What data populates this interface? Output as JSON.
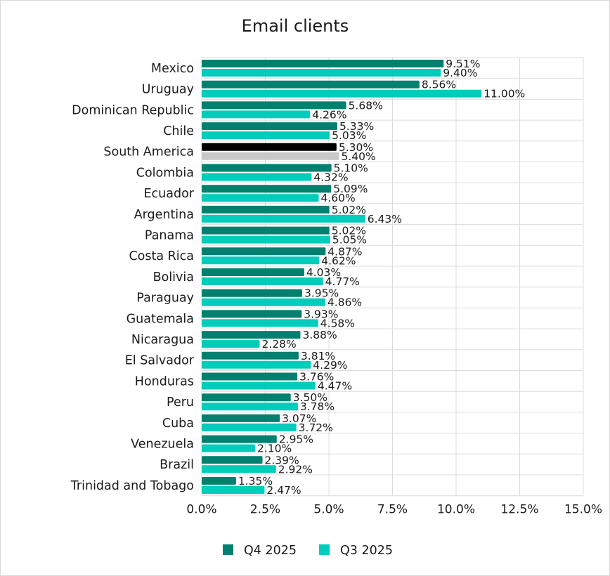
{
  "chart_data": {
    "type": "bar",
    "orientation": "horizontal",
    "title": "Email clients",
    "xlabel": "",
    "ylabel": "",
    "xlim": [
      0,
      15
    ],
    "x_ticks": [
      "0.0%",
      "2.5%",
      "5.0%",
      "7.5%",
      "10.0%",
      "12.5%",
      "15.0%"
    ],
    "grid": true,
    "legend_position": "bottom",
    "categories": [
      "Mexico",
      "Uruguay",
      "Dominican Republic",
      "Chile",
      "South America",
      "Colombia",
      "Ecuador",
      "Argentina",
      "Panama",
      "Costa Rica",
      "Bolivia",
      "Paraguay",
      "Guatemala",
      "Nicaragua",
      "El Salvador",
      "Honduras",
      "Peru",
      "Cuba",
      "Venezuela",
      "Brazil",
      "Trinidad and Tobago"
    ],
    "series": [
      {
        "name": "Q4 2025",
        "color": "#00806e",
        "values": [
          9.51,
          8.56,
          5.68,
          5.33,
          5.3,
          5.1,
          5.09,
          5.02,
          5.02,
          4.87,
          4.03,
          3.95,
          3.93,
          3.88,
          3.81,
          3.76,
          3.5,
          3.07,
          2.95,
          2.39,
          1.35
        ],
        "labels": [
          "9.51%",
          "8.56%",
          "5.68%",
          "5.33%",
          "5.30%",
          "5.10%",
          "5.09%",
          "5.02%",
          "5.02%",
          "4.87%",
          "4.03%",
          "3.95%",
          "3.93%",
          "3.88%",
          "3.81%",
          "3.76%",
          "3.50%",
          "3.07%",
          "2.95%",
          "2.39%",
          "1.35%"
        ]
      },
      {
        "name": "Q3 2025",
        "color": "#00ccbb",
        "values": [
          9.4,
          11.0,
          4.26,
          5.03,
          5.4,
          4.32,
          4.6,
          6.43,
          5.05,
          4.62,
          4.77,
          4.86,
          4.58,
          2.28,
          4.29,
          4.47,
          3.78,
          3.72,
          2.1,
          2.92,
          2.47
        ],
        "labels": [
          "9.40%",
          "11.00%",
          "4.26%",
          "5.03%",
          "5.40%",
          "4.32%",
          "4.60%",
          "6.43%",
          "5.05%",
          "4.62%",
          "4.77%",
          "4.86%",
          "4.58%",
          "2.28%",
          "4.29%",
          "4.47%",
          "3.78%",
          "3.72%",
          "2.10%",
          "2.92%",
          "2.47%"
        ]
      }
    ],
    "highlight": {
      "category": "South America",
      "colors": [
        "#000000",
        "#c8c8c8"
      ]
    }
  }
}
